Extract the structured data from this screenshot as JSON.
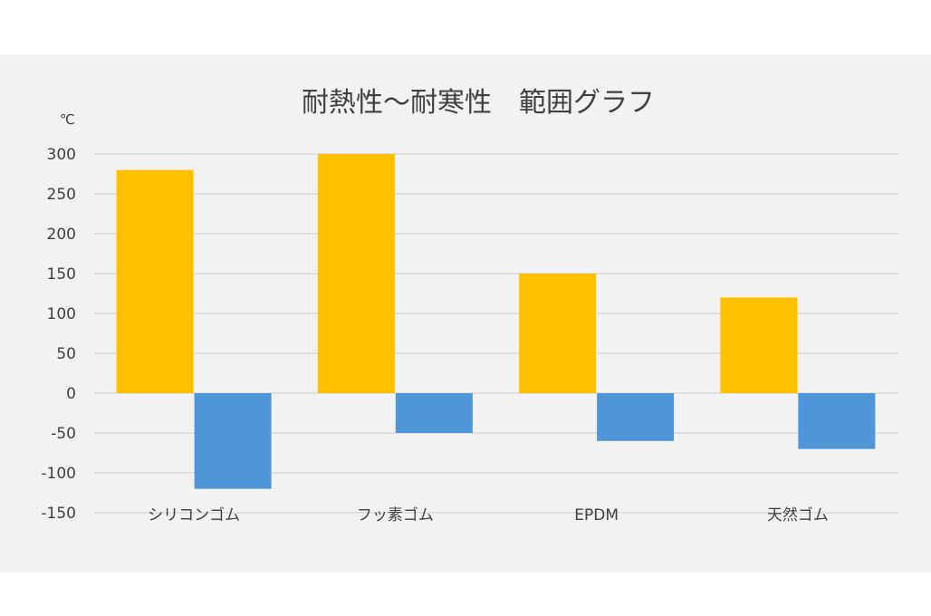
{
  "chart_data": {
    "type": "bar",
    "title": "耐熱性～耐寒性　範囲グラフ",
    "unit_label": "℃",
    "categories": [
      "シリコンゴム",
      "フッ素ゴム",
      "EPDM",
      "天然ゴム"
    ],
    "series": [
      {
        "values": [
          280,
          300,
          150,
          120
        ],
        "color": "#ffc000"
      },
      {
        "values": [
          -120,
          -50,
          -60,
          -70
        ],
        "color": "#4f96d8"
      }
    ],
    "ylim": [
      -150,
      300
    ],
    "yticks": [
      300,
      250,
      200,
      150,
      100,
      50,
      0,
      -50,
      -100,
      -150
    ],
    "grid": true,
    "grid_color": "#d9d9d9",
    "background": "#f2f2f2"
  }
}
